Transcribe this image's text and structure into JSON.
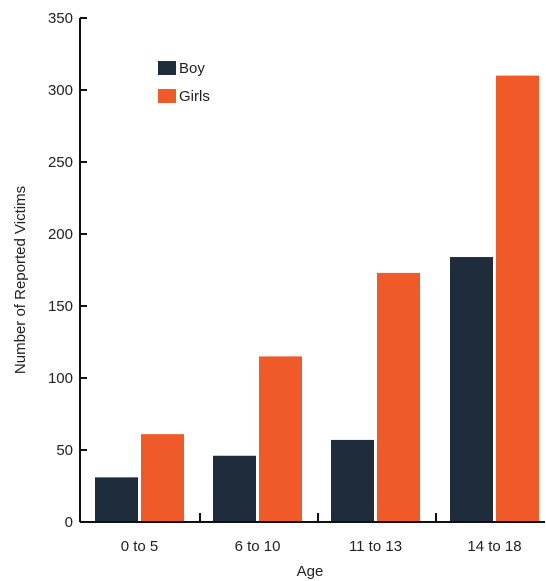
{
  "chart_data": {
    "type": "bar",
    "xlabel": "Age",
    "ylabel": "Number of Reported Victims",
    "categories": [
      "0 to 5",
      "6 to 10",
      "11 to 13",
      "14 to 18"
    ],
    "series": [
      {
        "name": "Boy",
        "color": "#1e2c3c",
        "values": [
          31,
          46,
          57,
          184
        ]
      },
      {
        "name": "Girls",
        "color": "#f05a28",
        "values": [
          61,
          115,
          173,
          310
        ]
      }
    ],
    "ylim": [
      0,
      350
    ],
    "yticks": [
      0,
      50,
      100,
      150,
      200,
      250,
      300,
      350
    ],
    "grid": false,
    "legend_position": "top-left"
  }
}
